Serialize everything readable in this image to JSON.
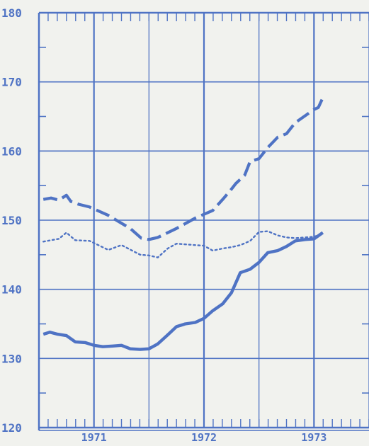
{
  "colors": {
    "ink": "#4f73c4",
    "background": "#f1f2ee"
  },
  "chart_data": {
    "type": "line",
    "title": "",
    "xlabel": "",
    "ylabel": "",
    "ylim": [
      120,
      180
    ],
    "xlim": [
      1970.5,
      1973.5
    ],
    "y_ticks": [
      "180",
      "170",
      "160",
      "150",
      "140",
      "130",
      "120"
    ],
    "x_tick_labels": [
      "1971",
      "1972",
      "1973"
    ],
    "grid": true,
    "series": [
      {
        "style": "dashed",
        "x": [
          1970.54,
          1970.61,
          1970.68,
          1970.75,
          1970.79,
          1970.86,
          1970.96,
          1971.13,
          1971.33,
          1971.43,
          1971.5,
          1971.58,
          1971.75,
          1971.92,
          1972.08,
          1972.17,
          1972.24,
          1972.29,
          1972.37,
          1972.42,
          1972.5,
          1972.58,
          1972.67,
          1972.75,
          1972.83,
          1973.0,
          1973.04,
          1973.08
        ],
        "values": [
          153.0,
          153.2,
          152.9,
          153.6,
          152.7,
          152.3,
          151.9,
          150.7,
          148.8,
          147.4,
          147.2,
          147.5,
          148.8,
          150.3,
          151.4,
          153.0,
          154.3,
          155.3,
          156.5,
          158.5,
          158.9,
          160.5,
          162.0,
          162.5,
          164.1,
          166.0,
          166.3,
          167.7
        ]
      },
      {
        "style": "dotted",
        "x": [
          1970.54,
          1970.61,
          1970.68,
          1970.75,
          1970.83,
          1970.96,
          1971.13,
          1971.25,
          1971.42,
          1971.5,
          1971.58,
          1971.67,
          1971.75,
          1971.92,
          1972.0,
          1972.08,
          1972.17,
          1972.25,
          1972.33,
          1972.42,
          1972.5,
          1972.58,
          1972.67,
          1972.75,
          1972.83,
          1973.0,
          1973.08
        ],
        "values": [
          146.9,
          147.1,
          147.3,
          148.2,
          147.1,
          147.0,
          145.7,
          146.4,
          145.0,
          144.9,
          144.6,
          145.9,
          146.6,
          146.4,
          146.3,
          145.6,
          145.9,
          146.1,
          146.4,
          147.0,
          148.3,
          148.4,
          147.8,
          147.5,
          147.4,
          147.6,
          148.0
        ]
      },
      {
        "style": "solid",
        "x": [
          1970.54,
          1970.6,
          1970.67,
          1970.75,
          1970.83,
          1970.92,
          1971.0,
          1971.08,
          1971.17,
          1971.25,
          1971.33,
          1971.42,
          1971.5,
          1971.58,
          1971.67,
          1971.75,
          1971.83,
          1971.92,
          1972.0,
          1972.08,
          1972.17,
          1972.25,
          1972.33,
          1972.42,
          1972.5,
          1972.58,
          1972.67,
          1972.75,
          1972.83,
          1972.92,
          1973.0,
          1973.08
        ],
        "values": [
          133.5,
          133.8,
          133.5,
          133.3,
          132.4,
          132.3,
          131.9,
          131.7,
          131.8,
          131.9,
          131.4,
          131.3,
          131.4,
          132.1,
          133.4,
          134.6,
          135.0,
          135.2,
          135.8,
          136.9,
          137.9,
          139.5,
          142.4,
          142.9,
          143.9,
          145.3,
          145.6,
          146.2,
          147.0,
          147.2,
          147.3,
          148.2
        ]
      }
    ]
  }
}
